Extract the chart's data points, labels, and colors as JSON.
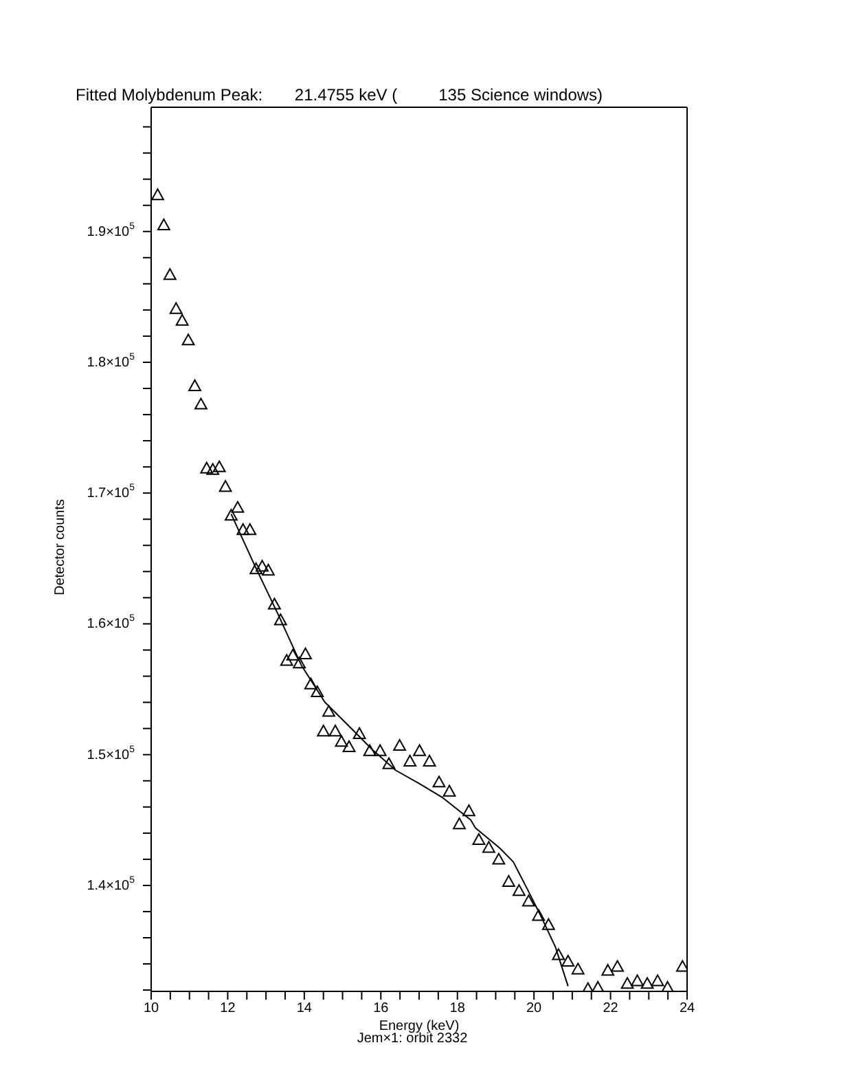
{
  "chart_data": {
    "type": "scatter",
    "title": "Fitted Molybdenum Peak:       21.4755 keV (         135 Science windows)",
    "xlabel": "Energy (keV)",
    "ylabel": "Detector counts",
    "annotations": [
      "Jem×1: orbit 2332"
    ],
    "xlim": [
      10,
      24
    ],
    "ylim": [
      131900,
      199500
    ],
    "xticks": [
      10,
      {
        "value": 10.5,
        "label": null
      },
      {
        "value": 11,
        "label": null
      },
      {
        "value": 11.5,
        "label": null
      },
      12,
      {
        "value": 12.5,
        "label": null
      },
      {
        "value": 13,
        "label": null
      },
      {
        "value": 13.5,
        "label": null
      },
      14,
      {
        "value": 14.5,
        "label": null
      },
      {
        "value": 15,
        "label": null
      },
      {
        "value": 15.5,
        "label": null
      },
      16,
      {
        "value": 16.5,
        "label": null
      },
      {
        "value": 17,
        "label": null
      },
      {
        "value": 17.5,
        "label": null
      },
      18,
      {
        "value": 18.5,
        "label": null
      },
      {
        "value": 19,
        "label": null
      },
      {
        "value": 19.5,
        "label": null
      },
      20,
      {
        "value": 20.5,
        "label": null
      },
      {
        "value": 21,
        "label": null
      },
      {
        "value": 21.5,
        "label": null
      },
      22,
      {
        "value": 22.5,
        "label": null
      },
      {
        "value": 23,
        "label": null
      },
      {
        "value": 23.5,
        "label": null
      },
      24
    ],
    "yticks": [
      {
        "value": 132000,
        "label": null
      },
      {
        "value": 134000,
        "label": null
      },
      {
        "value": 136000,
        "label": null
      },
      {
        "value": 138000,
        "label": null
      },
      {
        "value": 140000,
        "label": "1.4×10$^{5}$"
      },
      {
        "value": 142000,
        "label": null
      },
      {
        "value": 144000,
        "label": null
      },
      {
        "value": 146000,
        "label": null
      },
      {
        "value": 148000,
        "label": null
      },
      {
        "value": 150000,
        "label": "1.5×10$^{5}$"
      },
      {
        "value": 152000,
        "label": null
      },
      {
        "value": 154000,
        "label": null
      },
      {
        "value": 156000,
        "label": null
      },
      {
        "value": 158000,
        "label": null
      },
      {
        "value": 160000,
        "label": "1.6×10$^{5}$"
      },
      {
        "value": 162000,
        "label": null
      },
      {
        "value": 164000,
        "label": null
      },
      {
        "value": 166000,
        "label": null
      },
      {
        "value": 168000,
        "label": null
      },
      {
        "value": 170000,
        "label": "1.7×10$^{5}$"
      },
      {
        "value": 172000,
        "label": null
      },
      {
        "value": 174000,
        "label": null
      },
      {
        "value": 176000,
        "label": null
      },
      {
        "value": 178000,
        "label": null
      },
      {
        "value": 180000,
        "label": "1.8×10$^{5}$"
      },
      {
        "value": 182000,
        "label": null
      },
      {
        "value": 184000,
        "label": null
      },
      {
        "value": 186000,
        "label": null
      },
      {
        "value": 188000,
        "label": null
      },
      {
        "value": 190000,
        "label": "1.9×10$^{5}$"
      },
      {
        "value": 192000,
        "label": null
      },
      {
        "value": 194000,
        "label": null
      },
      {
        "value": 196000,
        "label": null
      },
      {
        "value": 198000,
        "label": null
      }
    ],
    "legend": false,
    "marker": "triangle",
    "series": [
      {
        "color": "#000000",
        "x": [
          10.17,
          10.33,
          10.49,
          10.65,
          10.81,
          10.97,
          11.14,
          11.3,
          11.45,
          11.61,
          11.78,
          11.94,
          12.09,
          12.26,
          12.4,
          12.58,
          12.74,
          12.9,
          13.06,
          13.22,
          13.38,
          13.54,
          13.7,
          13.87,
          14.03,
          14.17,
          14.34,
          14.5,
          14.64,
          14.81,
          14.97,
          15.17,
          15.44,
          15.71,
          15.98,
          16.21,
          16.49,
          16.76,
          17.01,
          17.27,
          17.52,
          17.79,
          18.05,
          18.3,
          18.56,
          18.82,
          19.08,
          19.34,
          19.61,
          19.86,
          20.12,
          20.38,
          20.64,
          20.89,
          21.15,
          21.41,
          21.67,
          21.93,
          22.18,
          22.44,
          22.7,
          22.96,
          23.23,
          23.49,
          23.88
        ],
        "values": [
          192800,
          190500,
          186700,
          184100,
          183200,
          181700,
          178200,
          176800,
          171900,
          171800,
          172000,
          170500,
          168300,
          168900,
          167200,
          167200,
          164200,
          164400,
          164100,
          161500,
          160300,
          157200,
          157600,
          157000,
          157700,
          155400,
          154800,
          151800,
          153300,
          151800,
          151000,
          150600,
          151600,
          150300,
          150300,
          149300,
          150700,
          149500,
          150300,
          149500,
          147900,
          147200,
          144700,
          145700,
          143500,
          142900,
          142000,
          140300,
          139600,
          138800,
          137700,
          137000,
          134700,
          134200,
          133600,
          132100,
          132200,
          133500,
          133800,
          132500,
          132700,
          132500,
          132700,
          132200,
          133800
        ]
      },
      {
        "type": "line",
        "color": "#000000",
        "marker": "none",
        "line_style": "solid",
        "x": [
          12.09,
          12.7,
          13.32,
          13.93,
          14.54,
          15.16,
          15.77,
          16.39,
          17.0,
          17.62,
          18.35,
          18.47,
          19.09,
          19.46,
          19.83,
          20.19,
          20.56,
          20.89
        ],
        "values": [
          168400,
          164500,
          160700,
          156800,
          154000,
          152200,
          150400,
          148800,
          147800,
          146700,
          145000,
          144400,
          142900,
          141800,
          139700,
          137600,
          135300,
          132300
        ]
      }
    ]
  }
}
